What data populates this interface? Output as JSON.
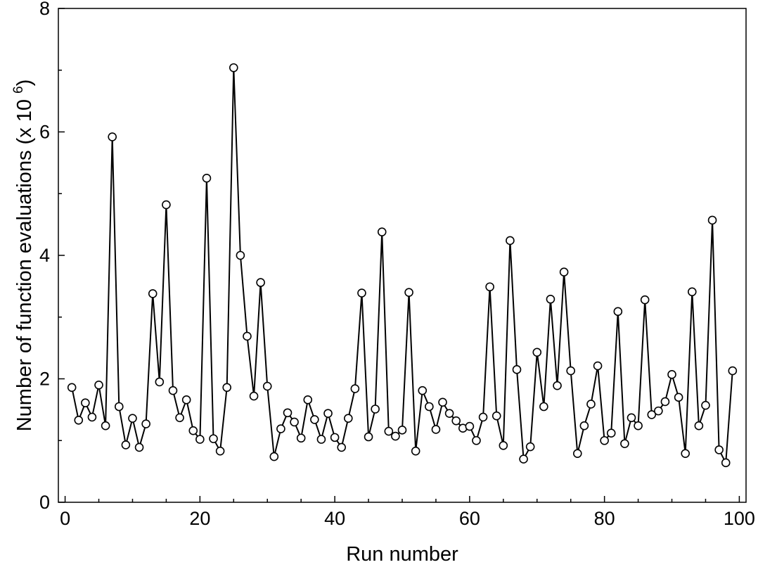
{
  "chart_data": {
    "type": "line",
    "title": "",
    "xlabel": "Run number",
    "ylabel": {
      "prefix": "Number of function evaluations (x 10",
      "exponent": "6",
      "suffix": ")"
    },
    "xlim": [
      -1,
      101
    ],
    "ylim": [
      0,
      8
    ],
    "x_major_ticks": [
      0,
      20,
      40,
      60,
      80,
      100
    ],
    "x_minor_step": 5,
    "y_major_ticks": [
      0,
      2,
      4,
      6,
      8
    ],
    "y_minor_step": 1,
    "grid": false,
    "marker": "open-circle",
    "line_color": "#000000",
    "marker_fill": "#ffffff",
    "series": [
      {
        "x": [
          1,
          2,
          3,
          4,
          5,
          6,
          7,
          8,
          9,
          10,
          11,
          12,
          13,
          14,
          15,
          16,
          17,
          18,
          19,
          20,
          21,
          22,
          23,
          24,
          25,
          26,
          27,
          28,
          29,
          30,
          31,
          32,
          33,
          34,
          35,
          36,
          37,
          38,
          39,
          40,
          41,
          42,
          43,
          44,
          45,
          46,
          47,
          48,
          49,
          50,
          51,
          52,
          53,
          54,
          55,
          56,
          57,
          58,
          59,
          60,
          61,
          62,
          63,
          64,
          65,
          66,
          67,
          68,
          69,
          70,
          71,
          72,
          73,
          74,
          75,
          76,
          77,
          78,
          79,
          80,
          81,
          82,
          83,
          84,
          85,
          86,
          87,
          88,
          89,
          90,
          91,
          92,
          93,
          94,
          95,
          96,
          97,
          98,
          99
        ],
        "values": [
          1.86,
          1.33,
          1.61,
          1.38,
          1.9,
          1.24,
          5.92,
          1.55,
          0.93,
          1.36,
          0.89,
          1.27,
          3.38,
          1.95,
          4.82,
          1.81,
          1.37,
          1.66,
          1.16,
          1.02,
          5.25,
          1.03,
          0.83,
          1.86,
          7.04,
          4.0,
          2.69,
          1.72,
          3.56,
          1.88,
          0.74,
          1.19,
          1.45,
          1.3,
          1.04,
          1.66,
          1.34,
          1.02,
          1.44,
          1.05,
          0.89,
          1.36,
          1.84,
          3.39,
          1.06,
          1.51,
          4.38,
          1.15,
          1.07,
          1.17,
          3.4,
          0.83,
          1.81,
          1.55,
          1.18,
          1.62,
          1.44,
          1.32,
          1.2,
          1.23,
          1.0,
          1.38,
          3.49,
          1.4,
          0.92,
          4.24,
          2.15,
          0.7,
          0.9,
          2.43,
          1.55,
          3.29,
          1.89,
          3.73,
          2.13,
          0.79,
          1.24,
          1.59,
          2.21,
          1.0,
          1.12,
          3.09,
          0.95,
          1.37,
          1.24,
          3.28,
          1.42,
          1.48,
          1.63,
          2.07,
          1.7,
          0.79,
          3.41,
          1.24,
          1.57,
          4.57,
          0.85,
          0.64,
          2.13
        ]
      }
    ]
  }
}
